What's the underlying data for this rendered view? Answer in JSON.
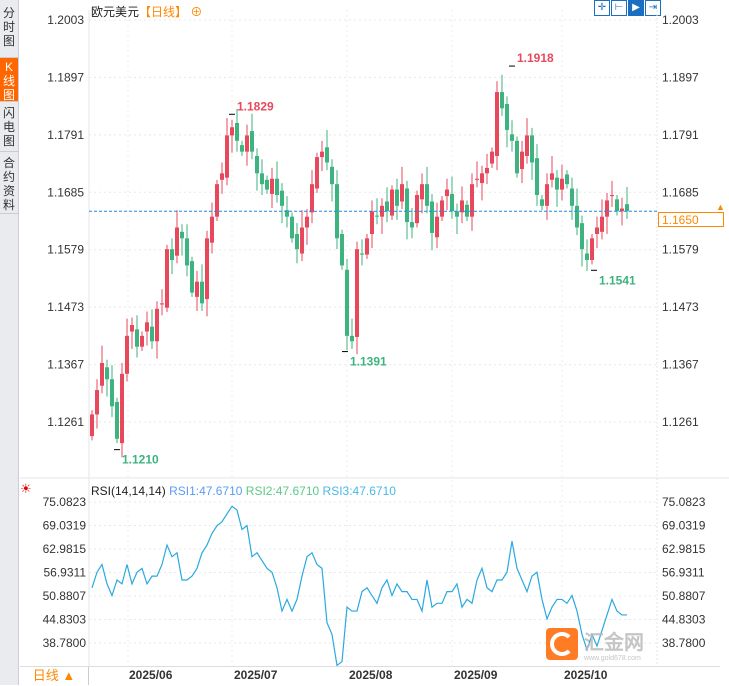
{
  "sidebar": {
    "tabs": [
      {
        "label": "分时图"
      },
      {
        "label": "K线图",
        "active": true
      },
      {
        "label": "闪电图"
      },
      {
        "label": "合约资料"
      }
    ]
  },
  "header": {
    "symbol": "欧元美元",
    "period": "【日线】",
    "toggle_icon": "circle-plus-icon"
  },
  "toolbar": [
    "crosshair-icon",
    "fit-range-icon",
    "play-forward-icon",
    "jump-end-icon"
  ],
  "price_axis": {
    "ticks": [
      "1.2003",
      "1.1897",
      "1.1791",
      "1.1685",
      "1.1579",
      "1.1473",
      "1.1367",
      "1.1261"
    ],
    "current": "1.1650"
  },
  "annotations": {
    "high1": "1.1829",
    "high2": "1.1918",
    "low1": "1.1210",
    "low2": "1.1391",
    "low3": "1.1541"
  },
  "rsi": {
    "header": "RSI(14,14,14)",
    "rsi1": "RSI1:47.6710",
    "rsi2": "RSI2:47.6710",
    "rsi3": "RSI3:47.6710",
    "ticks": [
      "75.0823",
      "69.0319",
      "62.9815",
      "56.9311",
      "50.8807",
      "44.8303",
      "38.7800"
    ]
  },
  "dates": [
    "2025/06",
    "2025/07",
    "2025/08",
    "2025/09",
    "2025/10"
  ],
  "footer": {
    "period": "日线 ▲"
  },
  "watermark": {
    "brand": "汇金网",
    "url": "www.gold678.com"
  },
  "colors": {
    "up": "#e8485c",
    "down": "#3db37f",
    "rsi": "#2aa9e0",
    "accent": "#ff8800"
  },
  "chart_data": {
    "type": "candlestick",
    "ylim": [
      1.118,
      1.2003
    ],
    "rsi_ylim": [
      33,
      77
    ],
    "closes": [
      1.1275,
      1.132,
      1.137,
      1.134,
      1.129,
      1.123,
      1.135,
      1.142,
      1.144,
      1.14,
      1.142,
      1.1445,
      1.141,
      1.147,
      1.148,
      1.158,
      1.156,
      1.162,
      1.16,
      1.155,
      1.15,
      1.152,
      1.148,
      1.16,
      1.164,
      1.17,
      1.172,
      1.179,
      1.1805,
      1.178,
      1.176,
      1.179,
      1.176,
      1.172,
      1.17,
      1.169,
      1.171,
      1.168,
      1.166,
      1.164,
      1.16,
      1.158,
      1.162,
      1.164,
      1.17,
      1.175,
      1.176,
      1.174,
      1.17,
      1.16,
      1.155,
      1.142,
      1.141,
      1.158,
      1.157,
      1.16,
      1.165,
      1.164,
      1.166,
      1.165,
      1.169,
      1.166,
      1.17,
      1.163,
      1.162,
      1.168,
      1.17,
      1.166,
      1.161,
      1.164,
      1.167,
      1.169,
      1.165,
      1.164,
      1.167,
      1.164,
      1.17,
      1.171,
      1.172,
      1.173,
      1.176,
      1.187,
      1.184,
      1.18,
      1.178,
      1.172,
      1.176,
      1.179,
      1.174,
      1.168,
      1.166,
      1.17,
      1.172,
      1.169,
      1.171,
      1.17,
      1.166,
      1.162,
      1.158,
      1.156,
      1.16,
      1.162,
      1.164,
      1.167,
      1.168,
      1.165,
      1.1655,
      1.165
    ],
    "rsi": [
      53,
      57,
      59,
      54,
      51,
      55,
      54,
      59,
      54,
      57,
      58,
      54,
      56,
      56,
      59,
      64,
      61,
      62,
      55,
      55,
      56,
      58,
      62,
      64,
      67,
      69,
      70,
      72,
      74,
      73,
      68,
      69,
      61,
      62,
      60,
      58,
      57,
      53,
      47,
      50,
      47,
      50,
      56,
      61,
      62,
      59,
      58,
      44,
      41,
      33,
      34,
      48,
      47,
      47,
      52,
      53,
      51,
      49,
      53,
      55,
      51,
      54,
      52,
      52,
      50,
      50,
      47,
      55,
      48,
      49,
      49,
      52,
      52,
      54,
      48,
      50,
      49,
      55,
      58,
      53,
      52,
      55,
      55,
      57,
      65,
      58,
      55,
      52,
      56,
      57,
      50,
      45,
      48,
      50,
      50,
      49,
      51,
      47,
      41,
      37,
      41,
      38,
      42,
      46,
      50,
      47,
      46,
      46
    ]
  }
}
